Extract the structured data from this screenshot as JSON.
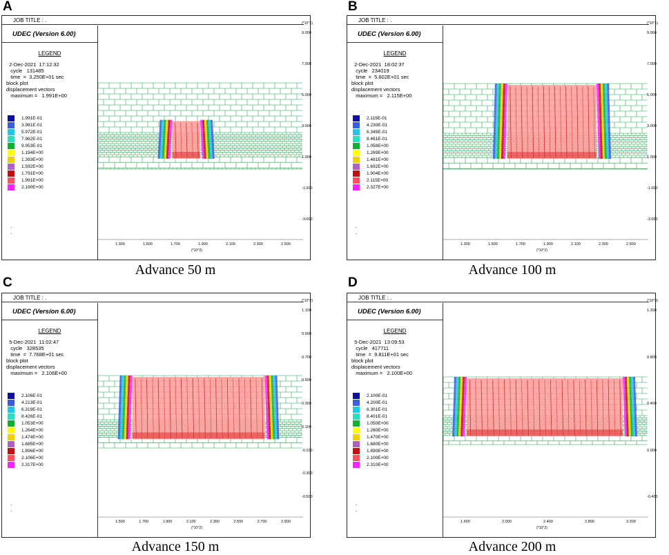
{
  "panels": [
    {
      "letter": "A",
      "caption": "Advance 50 m",
      "job_title": "JOB TITLE : .",
      "udec": "UDEC (Version 6.00)",
      "legend_title": "LEGEND",
      "info": "  2-Dec-2021  17:12:32\n   cycle   131485\n   time  =  3.250E+01 sec\nblock plot\ndisplacement vectors\n   maximum =   1.991E+00",
      "scale": [
        "1.991E-01",
        "3.981E-01",
        "5.972E-01",
        "7.962E-01",
        "9.953E-01",
        "1.194E+00",
        "1.393E+00",
        "1.592E+00",
        "1.791E+00",
        "1.991E+00",
        "2.190E+00"
      ],
      "y_unit": "(*10^1)",
      "y_ticks": [
        "9.000",
        "7.000",
        "5.000",
        "3.000",
        "1.000",
        "-1.000",
        "-3.000"
      ],
      "x_unit": "(*10^2)",
      "x_ticks": [
        "1.300",
        "1.500",
        "1.700",
        "1.900",
        "2.100",
        "2.300",
        "2.500"
      ],
      "disp": {
        "left": 0.33,
        "right": 0.53,
        "depth": 0.45
      }
    },
    {
      "letter": "B",
      "caption": "Advance 100 m",
      "job_title": "JOB TITLE : .",
      "udec": "UDEC (Version 6.00)",
      "legend_title": "LEGEND",
      "info": "  2-Dec-2021  18:02:37\n   cycle   234019\n   time  =  5.602E+01 sec\nblock plot\ndisplacement vectors\n   maximum =   2.115E+00",
      "scale": [
        "2.115E-01",
        "4.230E-01",
        "6.345E-01",
        "8.461E-01",
        "1.058E+00",
        "1.269E+00",
        "1.481E+00",
        "1.692E+00",
        "1.904E+00",
        "2.115E+00",
        "2.327E+00"
      ],
      "y_unit": "(*10^1)",
      "y_ticks": [
        "9.000",
        "7.000",
        "5.000",
        "3.000",
        "1.000",
        "-1.000",
        "-3.000"
      ],
      "x_unit": "(*10^2)",
      "x_ticks": [
        "1.300",
        "1.500",
        "1.700",
        "1.900",
        "2.100",
        "2.300",
        "2.500"
      ],
      "disp": {
        "left": 0.26,
        "right": 0.8,
        "depth": 1.0
      }
    },
    {
      "letter": "C",
      "caption": "Advance 150 m",
      "job_title": "JOB TITLE : .",
      "udec": "UDEC (Version 6.00)",
      "legend_title": "LEGEND",
      "info": "  5-Dec-2021  11:02:47\n   cycle   328535\n   time  =  7.768E+01 sec\nblock plot\ndisplacement vectors\n   maximum =   2.106E+00",
      "scale": [
        "2.106E-01",
        "4.213E-01",
        "6.319E-01",
        "8.426E-01",
        "1.053E+00",
        "1.264E+00",
        "1.474E+00",
        "1.685E+00",
        "1.896E+00",
        "2.106E+00",
        "2.317E+00"
      ],
      "y_unit": "(*10^2)",
      "y_ticks": [
        "1.100",
        "0.900",
        "0.700",
        "0.500",
        "0.300",
        "0.100",
        "-0.100",
        "-0.300",
        "-0.500"
      ],
      "x_unit": "(*10^2)",
      "x_ticks": [
        "1.500",
        "1.700",
        "1.900",
        "2.100",
        "2.300",
        "2.500",
        "2.700",
        "2.900"
      ],
      "disp": {
        "left": 0.1,
        "right": 0.88,
        "depth": 1.0
      }
    },
    {
      "letter": "D",
      "caption": "Advance 200 m",
      "job_title": "JOB TITLE : .",
      "udec": "UDEC (Version 6.00)",
      "legend_title": "LEGEND",
      "info": "  5-Dec-2021  13:09:53\n   cycle   417711\n   time  =  9.811E+01 sec\nblock plot\ndisplacement vectors\n   maximum =   2.100E+00",
      "scale": [
        "2.100E-01",
        "4.200E-01",
        "6.301E-01",
        "8.401E-01",
        "1.050E+00",
        "1.260E+00",
        "1.470E+00",
        "1.680E+00",
        "1.890E+00",
        "2.100E+00",
        "2.310E+00"
      ],
      "y_unit": "(*10^3)",
      "y_ticks": [
        "1.200",
        "0.800",
        "0.400",
        "0.000",
        "-0.400"
      ],
      "x_unit": "(*10^2)",
      "x_ticks": [
        "1.600",
        "2.000",
        "2.400",
        "2.800",
        "3.200"
      ],
      "disp": {
        "left": 0.04,
        "right": 0.95,
        "depth": 1.0
      }
    }
  ],
  "colors": [
    "#1010a0",
    "#3a5de0",
    "#20c8e8",
    "#27e0c0",
    "#10b030",
    "#ffff00",
    "#f0d000",
    "#b060c0",
    "#c01010",
    "#ff5060",
    "#ff20ff"
  ]
}
